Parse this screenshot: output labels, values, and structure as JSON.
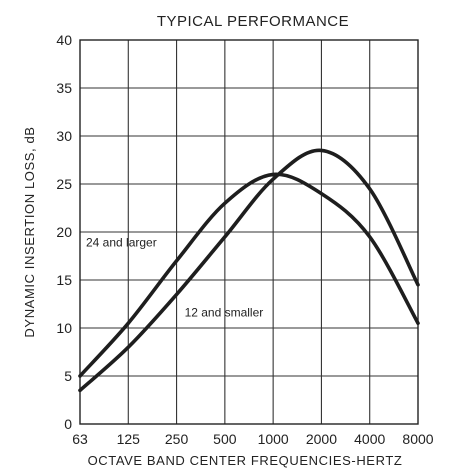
{
  "chart_data": {
    "type": "line",
    "title": "TYPICAL PERFORMANCE",
    "xlabel": "OCTAVE BAND CENTER FREQUENCIES-HERTZ",
    "ylabel": "DYNAMIC INSERTION LOSS, dB",
    "categories": [
      "63",
      "125",
      "250",
      "500",
      "1000",
      "2000",
      "4000",
      "8000"
    ],
    "yticks": [
      "0",
      "5",
      "10",
      "15",
      "20",
      "25",
      "30",
      "35",
      "40"
    ],
    "ylim": [
      0,
      40
    ],
    "grid": true,
    "series": [
      {
        "name": "24 and larger",
        "values": [
          5,
          10.5,
          17,
          23,
          26,
          24,
          19.5,
          10.5
        ]
      },
      {
        "name": "12 and smaller",
        "values": [
          3.5,
          8,
          13.5,
          19.5,
          25.5,
          28.5,
          24.5,
          14.5
        ]
      }
    ]
  }
}
